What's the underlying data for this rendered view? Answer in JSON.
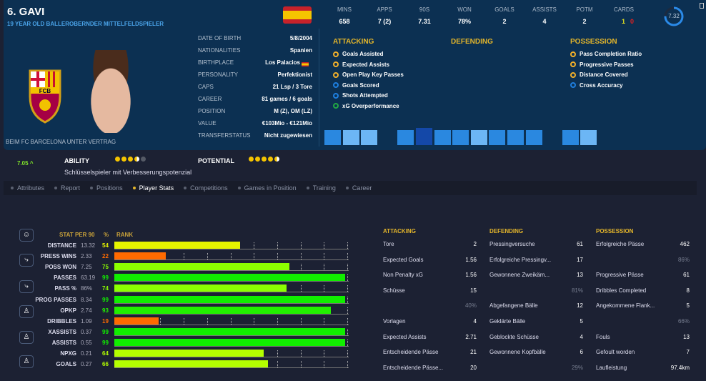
{
  "player": {
    "name": "6. GAVI",
    "subtitle": "19 YEAR OLD BALLEROBERNDER MITTELFELDSPIELER",
    "contract": "BEIM FC BARCELONA UNTER VERTRAG",
    "club_logo_text": "FCB"
  },
  "info": [
    {
      "label": "DATE OF BIRTH",
      "value": "5/8/2004"
    },
    {
      "label": "NATIONALITIES",
      "value": "Spanien"
    },
    {
      "label": "BIRTHPLACE",
      "value": "Los Palacios"
    },
    {
      "label": "PERSONALITY",
      "value": "Perfektionist"
    },
    {
      "label": "CAPS",
      "value": "21 Lsp / 3 Tore"
    },
    {
      "label": "CAREER",
      "value": "81 games /   6 goals"
    },
    {
      "label": "POSITION",
      "value": "M (Z), OM (LZ)"
    },
    {
      "label": "VALUE",
      "value": "€103Mio - €121Mio"
    },
    {
      "label": "TRANSFERSTATUS",
      "value": "Nicht zugewiesen"
    }
  ],
  "summary": [
    {
      "label": "MINS",
      "value": "658"
    },
    {
      "label": "APPS",
      "value": "7 (2)"
    },
    {
      "label": "90S",
      "value": "7.31"
    },
    {
      "label": "WON",
      "value": "78%"
    },
    {
      "label": "GOALS",
      "value": "2"
    },
    {
      "label": "ASSISTS",
      "value": "4"
    },
    {
      "label": "POTM",
      "value": "2"
    }
  ],
  "cards": {
    "label": "CARDS",
    "yellow": "1",
    "red": "0"
  },
  "rating": {
    "value": "7.32",
    "fraction": 0.75
  },
  "traits": {
    "attacking": {
      "title": "ATTACKING",
      "items": [
        {
          "label": "Goals Assisted",
          "color": "#f2b02a"
        },
        {
          "label": "Expected Assists",
          "color": "#f2b02a"
        },
        {
          "label": "Open Play Key Passes",
          "color": "#f2b02a"
        },
        {
          "label": "Goals Scored",
          "color": "#1e7fe0"
        },
        {
          "label": "Shots Attempted",
          "color": "#1e7fe0"
        },
        {
          "label": "xG Overperformance",
          "color": "#22a844"
        }
      ]
    },
    "defending": {
      "title": "DEFENDING",
      "items": []
    },
    "possession": {
      "title": "POSSESSION",
      "items": [
        {
          "label": "Pass Completion Ratio",
          "color": "#f2b02a"
        },
        {
          "label": "Progressive Passes",
          "color": "#f2b02a"
        },
        {
          "label": "Distance Covered",
          "color": "#f2b02a"
        },
        {
          "label": "Cross Accuracy",
          "color": "#1e7fe0"
        }
      ]
    }
  },
  "form_colors": [
    "#2a88e0",
    "#6cb6f5",
    "#6cb6f5",
    null,
    "#2a88e0",
    "#1448a8",
    "#2a88e0",
    "#2a88e0",
    "#6cb6f5",
    "#2a88e0",
    "#2a88e0",
    "#2a88e0",
    null,
    "#2a88e0",
    "#6cb6f5"
  ],
  "ability": {
    "rating": "7.05",
    "label": "ABILITY",
    "stars": 3.5,
    "potential_label": "POTENTIAL",
    "potential_stars": 4.5,
    "description": "Schlüsselspieler mit Verbesserungspotenzial"
  },
  "tabs": [
    {
      "label": "Attributes"
    },
    {
      "label": "Report"
    },
    {
      "label": "Positions"
    },
    {
      "label": "Player Stats",
      "active": true
    },
    {
      "label": "Competitions"
    },
    {
      "label": "Games in Position"
    },
    {
      "label": "Training"
    },
    {
      "label": "Career"
    }
  ],
  "rank_table": {
    "headers": {
      "stat": "STAT",
      "per90": "PER 90",
      "pct": "%",
      "rank": "RANK"
    },
    "rows": [
      {
        "stat": "DISTANCE",
        "per90": "13.32",
        "pct": 54,
        "color": "#e6f500"
      },
      {
        "stat": "PRESS WINS",
        "per90": "2.33",
        "pct": 22,
        "color": "#ff6a00"
      },
      {
        "stat": "POSS WON",
        "per90": "7.25",
        "pct": 75,
        "color": "#8cff00"
      },
      {
        "stat": "PASSES",
        "per90": "63.19",
        "pct": 99,
        "color": "#11ee00"
      },
      {
        "stat": "PASS %",
        "per90": "86%",
        "pct": 74,
        "color": "#8cff00"
      },
      {
        "stat": "PROG PASSES",
        "per90": "8.34",
        "pct": 99,
        "color": "#11ee00"
      },
      {
        "stat": "OPKP",
        "per90": "2.74",
        "pct": 93,
        "color": "#22f000"
      },
      {
        "stat": "DRIBBLES",
        "per90": "1.09",
        "pct": 19,
        "color": "#ff6a00"
      },
      {
        "stat": "XASSISTS",
        "per90": "0.37",
        "pct": 99,
        "color": "#11ee00"
      },
      {
        "stat": "ASSISTS",
        "per90": "0.55",
        "pct": 99,
        "color": "#11ee00"
      },
      {
        "stat": "NPXG",
        "per90": "0.21",
        "pct": 64,
        "color": "#b4ff00"
      },
      {
        "stat": "GOALS",
        "per90": "0.27",
        "pct": 66,
        "color": "#b4ff00"
      }
    ]
  },
  "details": [
    {
      "title": "ATTACKING",
      "rows": [
        [
          "Tore",
          "2"
        ],
        [
          "Expected Goals",
          "1.56"
        ],
        [
          "Non Penalty xG",
          "1.56"
        ],
        [
          "Schüsse",
          "15"
        ],
        [
          "",
          "40%"
        ],
        [
          "Vorlagen",
          "4"
        ],
        [
          "Expected Assists",
          "2.71"
        ],
        [
          "Entscheidende Pässe",
          "21"
        ],
        [
          "Entscheidende Pässe...",
          "20"
        ]
      ]
    },
    {
      "title": "DEFENDING",
      "rows": [
        [
          "Pressingversuche",
          "61"
        ],
        [
          "Erfolgreiche Pressingv...",
          "17"
        ],
        [
          "Gewonnene Zweikäm...",
          "13"
        ],
        [
          "",
          "81%"
        ],
        [
          "Abgefangene Bälle",
          "12"
        ],
        [
          "Geklärte Bälle",
          "5"
        ],
        [
          "Geblockte Schüsse",
          "4"
        ],
        [
          "Gewonnene Kopfbälle",
          "6"
        ],
        [
          "",
          "29%"
        ]
      ]
    },
    {
      "title": "POSSESSION",
      "rows": [
        [
          "Erfolgreiche Pässe",
          "462"
        ],
        [
          "",
          "86%"
        ],
        [
          "Progressive Pässe",
          "61"
        ],
        [
          "Dribbles Completed",
          "8"
        ],
        [
          "Angekommene Flank...",
          "5"
        ],
        [
          "",
          "66%"
        ],
        [
          "Fouls",
          "13"
        ],
        [
          "Gefoult worden",
          "7"
        ],
        [
          "Laufleistung",
          "97.4km"
        ]
      ]
    }
  ]
}
